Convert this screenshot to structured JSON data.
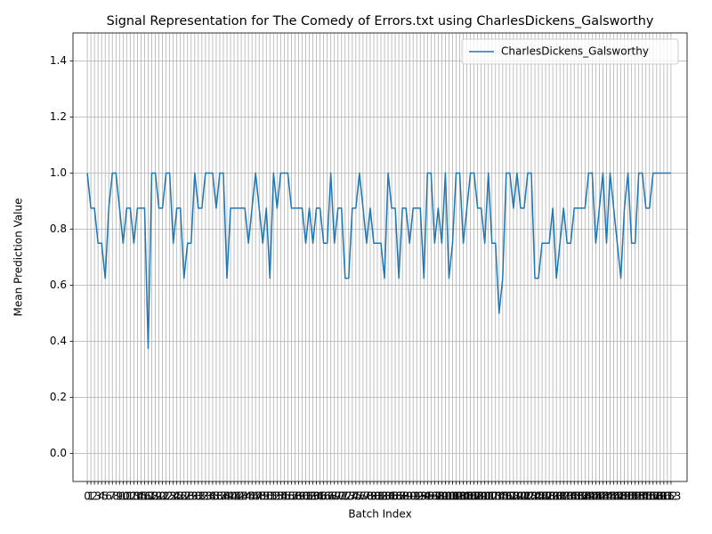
{
  "chart_data": {
    "type": "line",
    "title": "Signal Representation for The Comedy of Errors.txt using CharlesDickens_Galsworthy",
    "x_label": "Batch Index",
    "y_label": "Mean Prediction Value",
    "x": [
      0,
      1,
      2,
      3,
      4,
      5,
      6,
      7,
      8,
      9,
      10,
      11,
      12,
      13,
      14,
      15,
      16,
      17,
      18,
      19,
      20,
      21,
      22,
      23,
      24,
      25,
      26,
      27,
      28,
      29,
      30,
      31,
      32,
      33,
      34,
      35,
      36,
      37,
      38,
      39,
      40,
      41,
      42,
      43,
      44,
      45,
      46,
      47,
      48,
      49,
      50,
      51,
      52,
      53,
      54,
      55,
      56,
      57,
      58,
      59,
      60,
      61,
      62,
      63,
      64,
      65,
      66,
      67,
      68,
      69,
      70,
      71,
      72,
      73,
      74,
      75,
      76,
      77,
      78,
      79,
      80,
      81,
      82,
      83,
      84,
      85,
      86,
      87,
      88,
      89,
      90,
      91,
      92,
      93,
      94,
      95,
      96,
      97,
      98,
      99,
      100,
      101,
      102,
      103,
      104,
      105,
      106,
      107,
      108,
      109,
      110,
      111,
      112,
      113,
      114,
      115,
      116,
      117,
      118,
      119,
      120,
      121,
      122,
      123,
      124,
      125,
      126,
      127,
      128,
      129,
      130,
      131,
      132,
      133,
      134,
      135,
      136,
      137,
      138,
      139,
      140,
      141,
      142,
      143,
      144,
      145,
      146,
      147,
      148,
      149,
      150,
      151,
      152,
      153,
      154,
      155,
      156,
      157,
      158,
      159,
      160,
      161,
      162,
      163
    ],
    "series": [
      {
        "name": "CharlesDickens_Galsworthy",
        "color": "#1f77b4",
        "values": [
          1.0,
          0.875,
          0.875,
          0.75,
          0.75,
          0.625,
          0.875,
          1.0,
          1.0,
          0.875,
          0.75,
          0.875,
          0.875,
          0.75,
          0.875,
          0.875,
          0.875,
          0.375,
          1.0,
          1.0,
          0.875,
          0.875,
          1.0,
          1.0,
          0.75,
          0.875,
          0.875,
          0.625,
          0.75,
          0.75,
          1.0,
          0.875,
          0.875,
          1.0,
          1.0,
          1.0,
          0.875,
          1.0,
          1.0,
          0.625,
          0.875,
          0.875,
          0.875,
          0.875,
          0.875,
          0.75,
          0.875,
          1.0,
          0.875,
          0.75,
          0.875,
          0.625,
          1.0,
          0.875,
          1.0,
          1.0,
          1.0,
          0.875,
          0.875,
          0.875,
          0.875,
          0.75,
          0.875,
          0.75,
          0.875,
          0.875,
          0.75,
          0.75,
          1.0,
          0.75,
          0.875,
          0.875,
          0.625,
          0.625,
          0.875,
          0.875,
          1.0,
          0.875,
          0.75,
          0.875,
          0.75,
          0.75,
          0.75,
          0.625,
          1.0,
          0.875,
          0.875,
          0.625,
          0.875,
          0.875,
          0.75,
          0.875,
          0.875,
          0.875,
          0.625,
          1.0,
          1.0,
          0.75,
          0.875,
          0.75,
          1.0,
          0.625,
          0.75,
          1.0,
          1.0,
          0.75,
          0.875,
          1.0,
          1.0,
          0.875,
          0.875,
          0.75,
          1.0,
          0.75,
          0.75,
          0.5,
          0.625,
          1.0,
          1.0,
          0.875,
          1.0,
          0.875,
          0.875,
          1.0,
          1.0,
          0.625,
          0.625,
          0.75,
          0.75,
          0.75,
          0.875,
          0.625,
          0.75,
          0.875,
          0.75,
          0.75,
          0.875,
          0.875,
          0.875,
          0.875,
          1.0,
          1.0,
          0.75,
          0.875,
          1.0,
          0.75,
          1.0,
          0.875,
          0.75,
          0.625,
          0.875,
          1.0,
          0.75,
          0.75,
          1.0,
          1.0,
          0.875,
          0.875,
          1.0,
          1.0,
          1.0,
          1.0,
          1.0,
          1.0
        ]
      }
    ],
    "xlim": [
      -4,
      167.5
    ],
    "ylim": [
      -0.1,
      1.5
    ],
    "xticks": [
      0,
      1,
      2,
      3,
      4,
      5,
      6,
      7,
      8,
      9,
      10,
      11,
      12,
      13,
      14,
      15,
      16,
      17,
      18,
      19,
      20,
      21,
      22,
      23,
      24,
      25,
      26,
      27,
      28,
      29,
      30,
      31,
      32,
      33,
      34,
      35,
      36,
      37,
      38,
      39,
      40,
      41,
      42,
      43,
      44,
      45,
      46,
      47,
      48,
      49,
      50,
      51,
      52,
      53,
      54,
      55,
      56,
      57,
      58,
      59,
      60,
      61,
      62,
      63,
      64,
      65,
      66,
      67,
      68,
      69,
      70,
      71,
      72,
      73,
      74,
      75,
      76,
      77,
      78,
      79,
      80,
      81,
      82,
      83,
      84,
      85,
      86,
      87,
      88,
      89,
      90,
      91,
      92,
      93,
      94,
      95,
      96,
      97,
      98,
      99,
      100,
      101,
      102,
      103,
      104,
      105,
      106,
      107,
      108,
      109,
      110,
      111,
      112,
      113,
      114,
      115,
      116,
      117,
      118,
      119,
      120,
      121,
      122,
      123,
      124,
      125,
      126,
      127,
      128,
      129,
      130,
      131,
      132,
      133,
      134,
      135,
      136,
      137,
      138,
      139,
      140,
      141,
      142,
      143,
      144,
      145,
      146,
      147,
      148,
      149,
      150,
      151,
      152,
      153,
      154,
      155,
      156,
      157,
      158,
      159,
      160,
      161,
      162,
      163
    ],
    "yticks": [
      {
        "value": 0,
        "label": "0.0"
      },
      0.2,
      0.4,
      0.6,
      0.8,
      {
        "value": 1,
        "label": "1.0"
      },
      1.2,
      1.4
    ],
    "grid": true,
    "legend": "upper right"
  }
}
